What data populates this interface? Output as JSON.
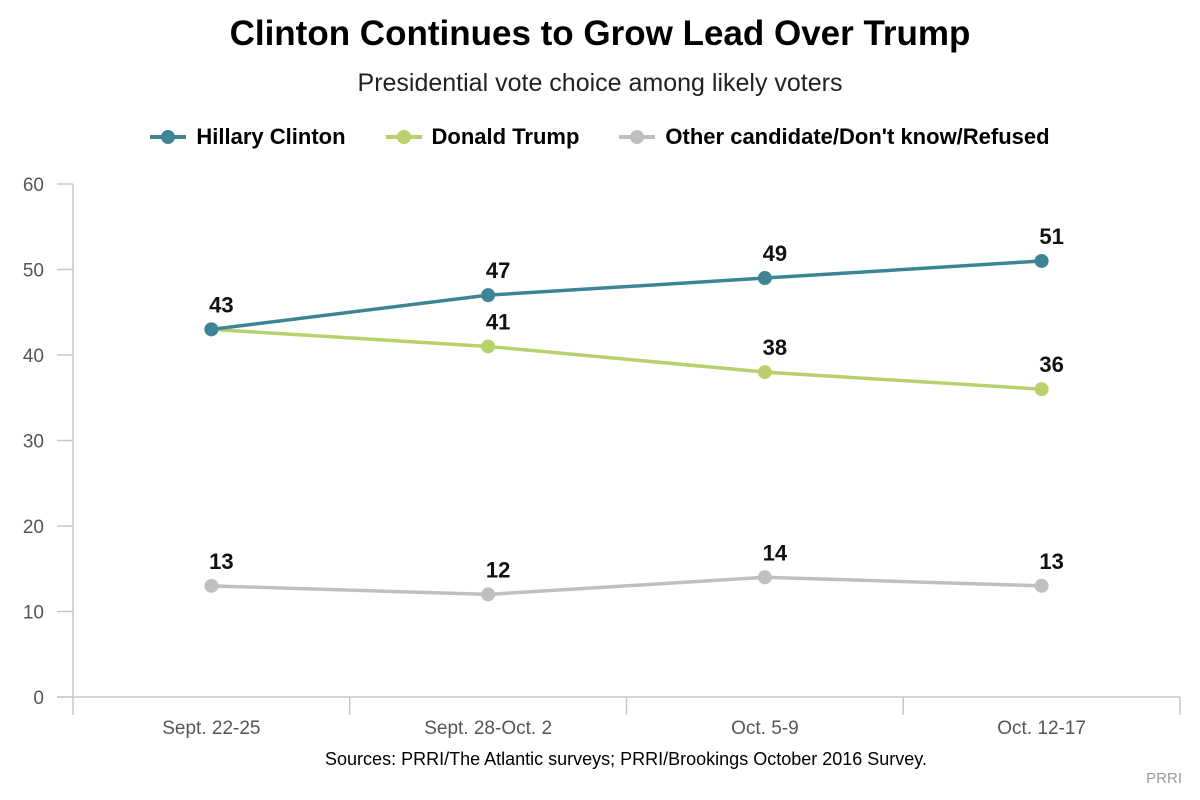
{
  "title": "Clinton Continues to Grow Lead Over Trump",
  "subtitle": "Presidential vote choice among likely voters",
  "source": "Sources: PRRI/The Atlantic surveys; PRRI/Brookings October 2016 Survey.",
  "brand": "PRRI",
  "chart_data": {
    "type": "line",
    "categories": [
      "Sept. 22-25",
      "Sept. 28-Oct. 2",
      "Oct. 5-9",
      "Oct. 12-17"
    ],
    "series": [
      {
        "name": "Hillary Clinton",
        "color": "#3d8595",
        "values": [
          43,
          47,
          49,
          51
        ]
      },
      {
        "name": "Donald Trump",
        "color": "#b8d16c",
        "values": [
          43,
          41,
          38,
          36
        ]
      },
      {
        "name": "Other candidate/Don't know/Refused",
        "color": "#bfbfbf",
        "values": [
          13,
          12,
          14,
          13
        ]
      }
    ],
    "ylim": [
      0,
      60
    ],
    "yticks": [
      0,
      10,
      20,
      30,
      40,
      50,
      60
    ],
    "grid": false,
    "legend": "top-center"
  }
}
